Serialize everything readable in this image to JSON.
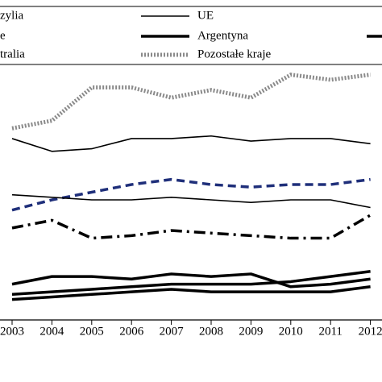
{
  "chart_data": {
    "type": "line",
    "categories": [
      "2003",
      "2004",
      "2005",
      "2006",
      "2007",
      "2008",
      "2009",
      "2010",
      "2011",
      "2012"
    ],
    "ylim": [
      0,
      100
    ],
    "series": [
      {
        "name": "Pozostałe kraje",
        "color": "#8a8a8a",
        "linewidth": 5,
        "dash": "2 2",
        "values": [
          75,
          78,
          91,
          91,
          87,
          90,
          87,
          96,
          94,
          96
        ]
      },
      {
        "name": "UE",
        "color": "#000000",
        "linewidth": 1.6,
        "dash": "none",
        "values": [
          71,
          66,
          67,
          71,
          71,
          72,
          70,
          71,
          71,
          69
        ]
      },
      {
        "name": "zylia",
        "color": "#1f2f7a",
        "linewidth": 3.5,
        "dash": "10 6",
        "values": [
          43,
          47,
          50,
          53,
          55,
          53,
          52,
          53,
          53,
          55
        ]
      },
      {
        "name": "e",
        "color": "#000000",
        "linewidth": 1.6,
        "dash": "none",
        "values": [
          49,
          48,
          47,
          47,
          48,
          47,
          46,
          47,
          47,
          44
        ]
      },
      {
        "name": "tralia",
        "color": "#000000",
        "linewidth": 3.5,
        "dash": "14 6 3 6",
        "values": [
          36,
          39,
          32,
          33,
          35,
          34,
          33,
          32,
          32,
          41
        ]
      },
      {
        "name": "Argentyna",
        "color": "#000000",
        "linewidth": 3.5,
        "dash": "none",
        "values": [
          14,
          17,
          17,
          16,
          18,
          17,
          18,
          13,
          14,
          16
        ]
      },
      {
        "color": "#000000",
        "linewidth": 3.5,
        "dash": "none",
        "values": [
          10,
          11,
          12,
          13,
          14,
          14,
          14,
          15,
          17,
          19
        ]
      },
      {
        "color": "#000000",
        "linewidth": 3.5,
        "dash": "none",
        "values": [
          8,
          9,
          10,
          11,
          12,
          11,
          11,
          11,
          11,
          13
        ]
      }
    ]
  }
}
